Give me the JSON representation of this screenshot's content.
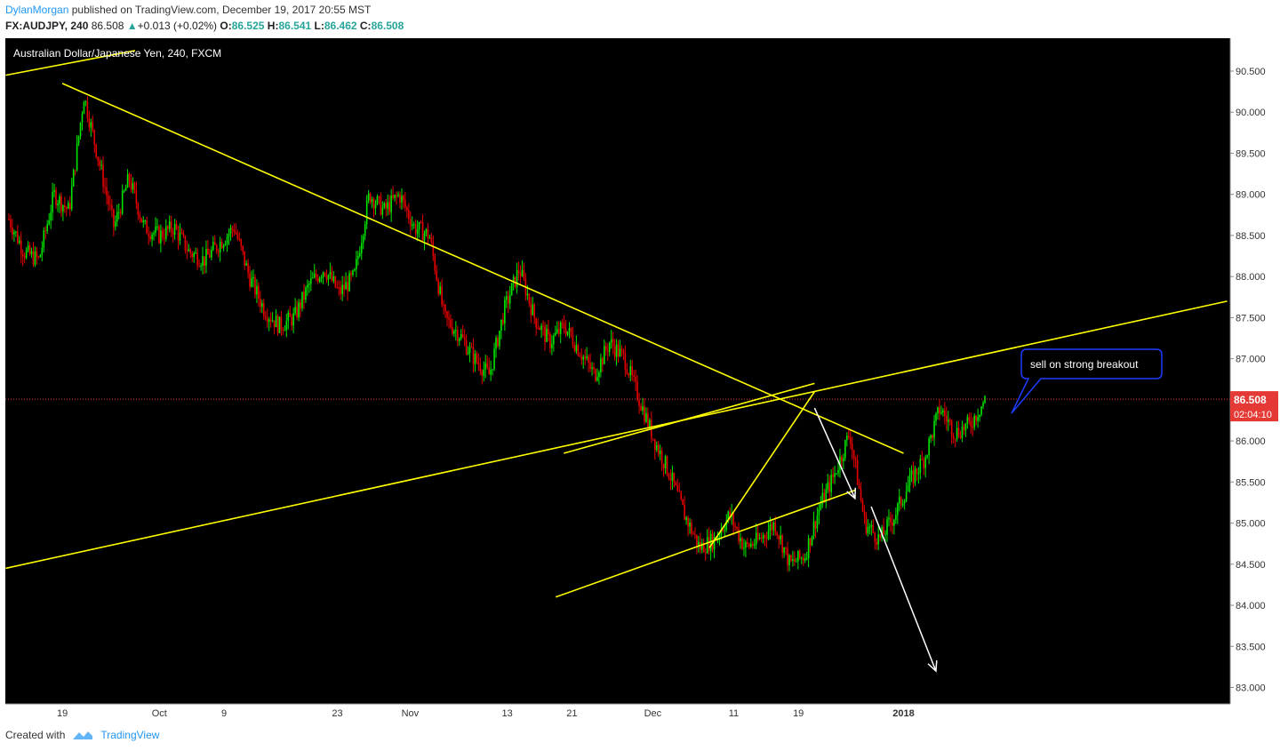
{
  "header": {
    "author": "DylanMorgan",
    "published_text": "published on TradingView.com, December 19, 2017 20:55 MST",
    "symbol": "FX:AUDJPY, 240",
    "last": "86.508",
    "change": "+0.013 (+0.02%)",
    "o_label": "O:",
    "o": "86.525",
    "h_label": "H:",
    "h": "86.541",
    "l_label": "L:",
    "l": "86.462",
    "c_label": "C:",
    "c": "86.508"
  },
  "footer": {
    "created_with": "Created with",
    "brand": "TradingView"
  },
  "colors": {
    "background": "#000000",
    "up": "#00e600",
    "down": "#e60000",
    "trendline": "#ffff00",
    "arrow": "#ffffff",
    "price_tag": "#e53935",
    "callout_border": "#1e3cff"
  },
  "chart_data": {
    "type": "candlestick",
    "title": "Australian Dollar/Japanese Yen, 240, FXCM",
    "ylim": [
      82.8,
      90.9
    ],
    "y_ticks": [
      "90.500",
      "90.000",
      "89.500",
      "89.000",
      "88.500",
      "88.000",
      "87.500",
      "87.000",
      "86.500",
      "86.000",
      "85.500",
      "85.000",
      "84.500",
      "84.000",
      "83.500",
      "83.000"
    ],
    "x_ticks": [
      "19",
      "Oct",
      "9",
      "23",
      "Nov",
      "13",
      "21",
      "Dec",
      "11",
      "19",
      "2018"
    ],
    "current_price": "86.508",
    "countdown": "02:04:10",
    "close_path": [
      88.7,
      88.3,
      88.2,
      89.0,
      88.8,
      90.2,
      89.4,
      88.6,
      89.2,
      88.6,
      88.5,
      88.6,
      88.3,
      88.2,
      88.4,
      88.6,
      88.0,
      87.6,
      87.4,
      87.5,
      87.9,
      88.1,
      87.8,
      88.0,
      89.0,
      88.8,
      89.0,
      88.6,
      88.5,
      87.5,
      87.3,
      87.0,
      86.8,
      87.6,
      88.1,
      87.5,
      87.2,
      87.4,
      87.1,
      86.8,
      87.2,
      87.0,
      86.5,
      86.0,
      85.6,
      85.1,
      84.7,
      84.8,
      85.1,
      84.7,
      84.8,
      85.0,
      84.5,
      84.6,
      85.2,
      85.6,
      86.1,
      85.0,
      84.8,
      85.1,
      85.5,
      85.8,
      86.4,
      86.1,
      86.2,
      86.5
    ],
    "trendlines": [
      {
        "from": [
          "19 Sep",
          90.35
        ],
        "to": [
          "21 Dec",
          86.6
        ],
        "extended_to": [
          "2018",
          85.85
        ]
      },
      {
        "from": [
          "start",
          84.45
        ],
        "to": [
          "end",
          87.7
        ]
      },
      {
        "from": [
          "start",
          90.45
        ],
        "to": [
          "28 Sep",
          90.75
        ]
      },
      {
        "from": [
          "19 Nov",
          84.1
        ],
        "to": [
          "26 Dec",
          85.4
        ]
      },
      {
        "from": [
          "20 Nov",
          85.85
        ],
        "to": [
          "21 Dec",
          86.7
        ]
      },
      {
        "from": [
          "8 Dec",
          84.7
        ],
        "to": [
          "21 Dec",
          86.6
        ]
      }
    ],
    "annotation": {
      "text": "sell on strong breakout"
    },
    "projection_arrows": [
      {
        "from": [
          "21 Dec",
          86.4
        ],
        "to": [
          "26 Dec",
          85.3
        ]
      },
      {
        "from": [
          "28 Dec",
          85.2
        ],
        "to": [
          "5 Jan",
          83.2
        ]
      }
    ]
  }
}
